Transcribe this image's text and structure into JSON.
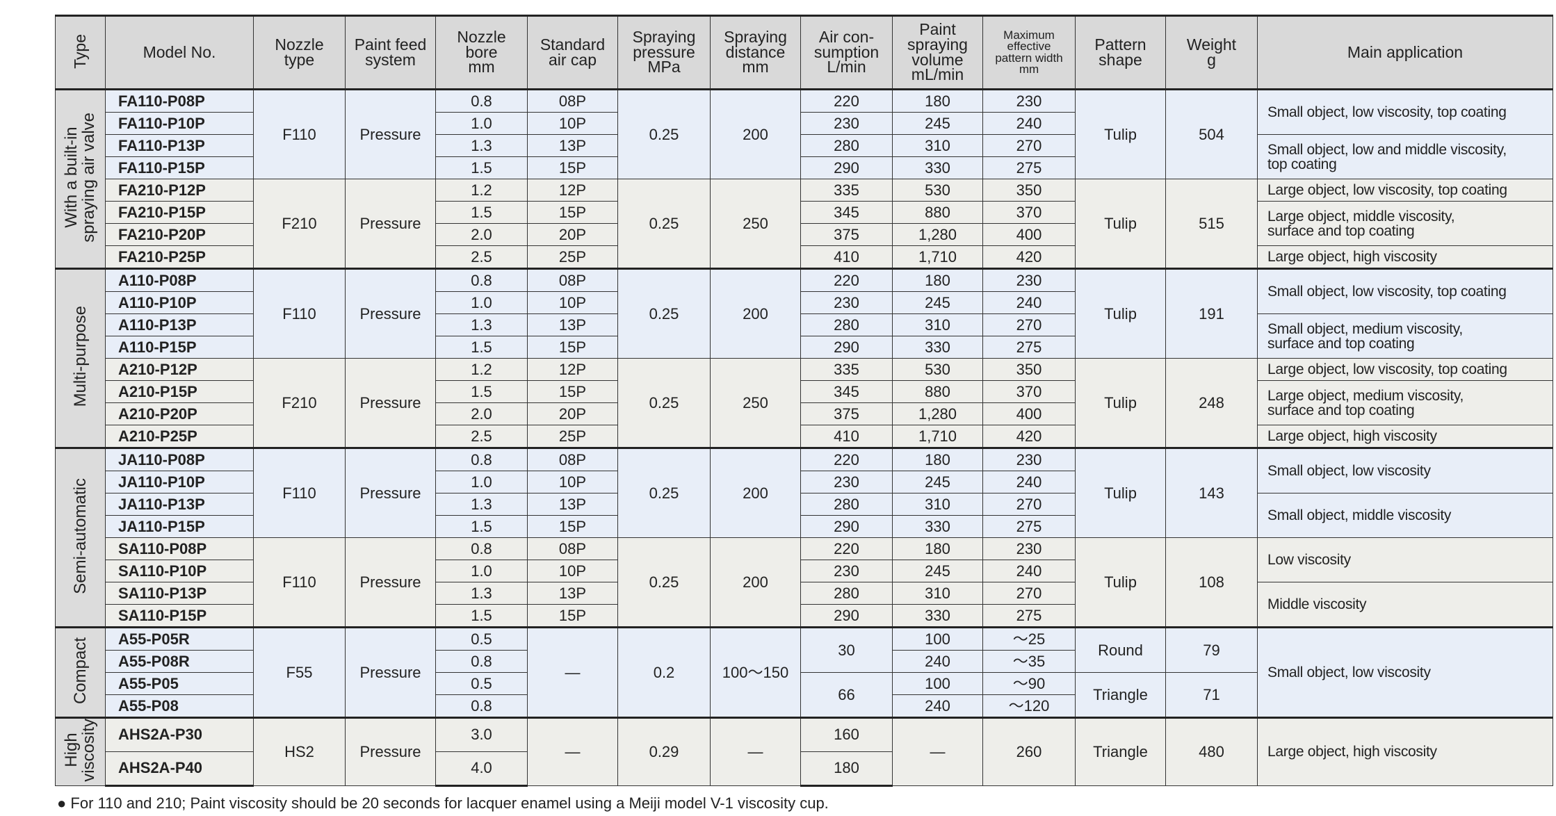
{
  "table": {
    "header": [
      "Type",
      "Model No.",
      "Nozzle\ntype",
      "Paint feed\nsystem",
      "Nozzle\nbore\nmm",
      "Standard\nair cap",
      "Spraying\npressure\nMPa",
      "Spraying\ndistance\nmm",
      "Air con-\nsumption\nL/min",
      "Paint\nspraying\nvolume\nmL/min",
      "Maximum\neffective\npattern width\nmm",
      "Pattern\nshape",
      "Weight\ng",
      "Main application"
    ],
    "rows": [
      [
        "With a built-in\nspraying air valve",
        "FA110-P08P",
        "F110",
        "Pressure",
        "0.8",
        "08P",
        "0.25",
        "200",
        "220",
        "180",
        "230",
        "Tulip",
        "504",
        "Small object, low viscosity, top coating"
      ],
      [
        null,
        "FA110-P10P",
        null,
        null,
        "1.0",
        "10P",
        null,
        null,
        "230",
        "245",
        "240",
        null,
        null,
        null
      ],
      [
        null,
        "FA110-P13P",
        null,
        null,
        "1.3",
        "13P",
        null,
        null,
        "280",
        "310",
        "270",
        null,
        null,
        "Small object, low and middle viscosity,\ntop coating"
      ],
      [
        null,
        "FA110-P15P",
        null,
        null,
        "1.5",
        "15P",
        null,
        null,
        "290",
        "330",
        "275",
        null,
        null,
        null
      ],
      [
        null,
        "FA210-P12P",
        "F210",
        "Pressure",
        "1.2",
        "12P",
        "0.25",
        "250",
        "335",
        "530",
        "350",
        "Tulip",
        "515",
        "Large object, low viscosity, top coating"
      ],
      [
        null,
        "FA210-P15P",
        null,
        null,
        "1.5",
        "15P",
        null,
        null,
        "345",
        "880",
        "370",
        null,
        null,
        "Large object, middle viscosity,\nsurface and top coating"
      ],
      [
        null,
        "FA210-P20P",
        null,
        null,
        "2.0",
        "20P",
        null,
        null,
        "375",
        "1,280",
        "400",
        null,
        null,
        null
      ],
      [
        null,
        "FA210-P25P",
        null,
        null,
        "2.5",
        "25P",
        null,
        null,
        "410",
        "1,710",
        "420",
        null,
        null,
        "Large object, high viscosity"
      ],
      [
        "Multi-purpose",
        "A110-P08P",
        "F110",
        "Pressure",
        "0.8",
        "08P",
        "0.25",
        "200",
        "220",
        "180",
        "230",
        "Tulip",
        "191",
        "Small object, low viscosity, top coating"
      ],
      [
        null,
        "A110-P10P",
        null,
        null,
        "1.0",
        "10P",
        null,
        null,
        "230",
        "245",
        "240",
        null,
        null,
        null
      ],
      [
        null,
        "A110-P13P",
        null,
        null,
        "1.3",
        "13P",
        null,
        null,
        "280",
        "310",
        "270",
        null,
        null,
        "Small object, medium viscosity,\nsurface and top coating"
      ],
      [
        null,
        "A110-P15P",
        null,
        null,
        "1.5",
        "15P",
        null,
        null,
        "290",
        "330",
        "275",
        null,
        null,
        null
      ],
      [
        null,
        "A210-P12P",
        "F210",
        "Pressure",
        "1.2",
        "12P",
        "0.25",
        "250",
        "335",
        "530",
        "350",
        "Tulip",
        "248",
        "Large object, low viscosity, top coating"
      ],
      [
        null,
        "A210-P15P",
        null,
        null,
        "1.5",
        "15P",
        null,
        null,
        "345",
        "880",
        "370",
        null,
        null,
        "Large object, medium viscosity,\nsurface and top coating"
      ],
      [
        null,
        "A210-P20P",
        null,
        null,
        "2.0",
        "20P",
        null,
        null,
        "375",
        "1,280",
        "400",
        null,
        null,
        null
      ],
      [
        null,
        "A210-P25P",
        null,
        null,
        "2.5",
        "25P",
        null,
        null,
        "410",
        "1,710",
        "420",
        null,
        null,
        "Large object, high viscosity"
      ],
      [
        "Semi-automatic",
        "JA110-P08P",
        "F110",
        "Pressure",
        "0.8",
        "08P",
        "0.25",
        "200",
        "220",
        "180",
        "230",
        "Tulip",
        "143",
        "Small object, low viscosity"
      ],
      [
        null,
        "JA110-P10P",
        null,
        null,
        "1.0",
        "10P",
        null,
        null,
        "230",
        "245",
        "240",
        null,
        null,
        null
      ],
      [
        null,
        "JA110-P13P",
        null,
        null,
        "1.3",
        "13P",
        null,
        null,
        "280",
        "310",
        "270",
        null,
        null,
        "Small object, middle viscosity"
      ],
      [
        null,
        "JA110-P15P",
        null,
        null,
        "1.5",
        "15P",
        null,
        null,
        "290",
        "330",
        "275",
        null,
        null,
        null
      ],
      [
        null,
        "SA110-P08P",
        "F110",
        "Pressure",
        "0.8",
        "08P",
        "0.25",
        "200",
        "220",
        "180",
        "230",
        "Tulip",
        "108",
        "Low viscosity"
      ],
      [
        null,
        "SA110-P10P",
        null,
        null,
        "1.0",
        "10P",
        null,
        null,
        "230",
        "245",
        "240",
        null,
        null,
        null
      ],
      [
        null,
        "SA110-P13P",
        null,
        null,
        "1.3",
        "13P",
        null,
        null,
        "280",
        "310",
        "270",
        null,
        null,
        "Middle viscosity"
      ],
      [
        null,
        "SA110-P15P",
        null,
        null,
        "1.5",
        "15P",
        null,
        null,
        "290",
        "330",
        "275",
        null,
        null,
        null
      ],
      [
        "Compact",
        "A55-P05R",
        "F55",
        "Pressure",
        "0.5",
        "—",
        "0.2",
        "100～150",
        "30",
        "100",
        "～25",
        "Round",
        "79",
        "Small object, low viscosity"
      ],
      [
        null,
        "A55-P08R",
        null,
        null,
        "0.8",
        null,
        null,
        null,
        null,
        "240",
        "～35",
        null,
        null,
        null
      ],
      [
        null,
        "A55-P05",
        null,
        null,
        "0.5",
        null,
        null,
        null,
        "66",
        "100",
        "～90",
        "Triangle",
        "71",
        null
      ],
      [
        null,
        "A55-P08",
        null,
        null,
        "0.8",
        null,
        null,
        null,
        null,
        "240",
        "～120",
        null,
        null,
        null
      ],
      [
        "High\nviscosity",
        "AHS2A-P30",
        "HS2",
        "Pressure",
        "3.0",
        "—",
        "0.29",
        "—",
        "160",
        "—",
        "260",
        "Triangle",
        "480",
        "Large object, high viscosity"
      ],
      [
        null,
        "AHS2A-P40",
        null,
        null,
        "4.0",
        null,
        null,
        null,
        "180",
        null,
        null,
        null,
        null,
        null
      ]
    ]
  },
  "footnote": "● For 110 and 210; Paint viscosity should be 20 seconds for lacquer enamel using a Meiji model V-1 viscosity cup."
}
